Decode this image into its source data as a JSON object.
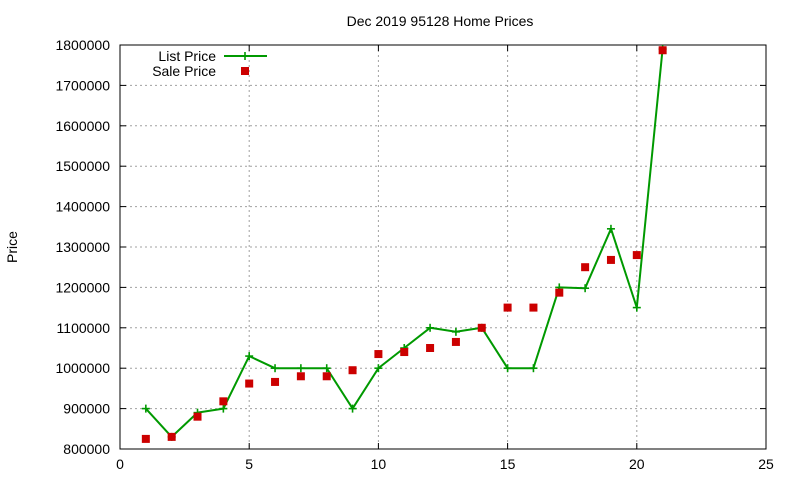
{
  "chart_data": {
    "type": "line",
    "title": "Dec 2019 95128 Home Prices",
    "xlabel": "",
    "ylabel": "Price",
    "xlim": [
      0,
      25
    ],
    "ylim": [
      800000,
      1800000
    ],
    "xticks": [
      "0",
      "5",
      "10",
      "15",
      "20",
      "25"
    ],
    "yticks": [
      "800000",
      "900000",
      "1000000",
      "1100000",
      "1200000",
      "1300000",
      "1400000",
      "1500000",
      "1600000",
      "1700000",
      "1800000"
    ],
    "grid": true,
    "legend_position": "top-left",
    "series": [
      {
        "name": "List Price",
        "style": "line-with-plus-markers",
        "color": "#009900",
        "points": [
          [
            1,
            900000
          ],
          [
            2,
            830000
          ],
          [
            3,
            890000
          ],
          [
            4,
            900000
          ],
          [
            5,
            1030000
          ],
          [
            6,
            1000000
          ],
          [
            7,
            1000000
          ],
          [
            8,
            1000000
          ],
          [
            9,
            900000
          ],
          [
            10,
            1000000
          ],
          [
            11,
            1050000
          ],
          [
            12,
            1100000
          ],
          [
            13,
            1090000
          ],
          [
            14,
            1100000
          ],
          [
            15,
            1000000
          ],
          [
            16,
            1000000
          ],
          [
            17,
            1200000
          ],
          [
            18,
            1198000
          ],
          [
            19,
            1345000
          ],
          [
            20,
            1150000
          ],
          [
            21,
            1790000
          ]
        ]
      },
      {
        "name": "Sale Price",
        "style": "square-markers",
        "color": "#cc0000",
        "points": [
          [
            1,
            825000
          ],
          [
            2,
            830000
          ],
          [
            3,
            880000
          ],
          [
            4,
            918000
          ],
          [
            5,
            962000
          ],
          [
            6,
            966000
          ],
          [
            7,
            980000
          ],
          [
            8,
            980000
          ],
          [
            9,
            995000
          ],
          [
            10,
            1035000
          ],
          [
            11,
            1040000
          ],
          [
            12,
            1050000
          ],
          [
            13,
            1065000
          ],
          [
            14,
            1100000
          ],
          [
            15,
            1150000
          ],
          [
            16,
            1150000
          ],
          [
            17,
            1187000
          ],
          [
            18,
            1250000
          ],
          [
            19,
            1268000
          ],
          [
            20,
            1280000
          ],
          [
            21,
            1787000
          ]
        ]
      }
    ]
  }
}
